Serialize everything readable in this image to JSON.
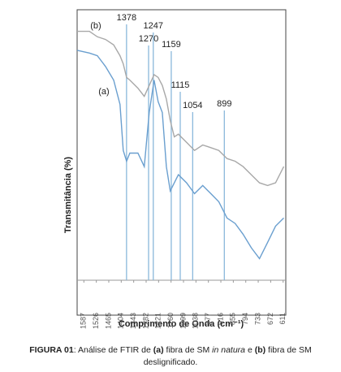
{
  "chart_data": {
    "type": "line",
    "xlabel": "Comprimento de Onda (cm⁻¹)",
    "ylabel": "Transmitância (%)",
    "xlim": [
      1620,
      598
    ],
    "ylim": [
      0,
      100
    ],
    "xticks": [
      1587,
      1526,
      1465,
      1404,
      1343,
      1282,
      1221,
      1160,
      1099,
      1038,
      977,
      916,
      855,
      794,
      733,
      672,
      611
    ],
    "x": [
      1620,
      1560,
      1521,
      1481,
      1441,
      1410,
      1394,
      1378,
      1362,
      1322,
      1291,
      1267,
      1243,
      1223,
      1203,
      1183,
      1164,
      1144,
      1124,
      1084,
      1045,
      1005,
      965,
      926,
      886,
      846,
      807,
      767,
      727,
      687,
      648,
      608
    ],
    "series": [
      {
        "name": "(a)",
        "color": "#6a9fcf",
        "values": [
          85,
          84,
          83,
          79,
          74,
          65,
          48,
          44,
          47,
          47,
          42,
          62,
          74,
          66,
          62,
          42,
          33,
          36,
          39,
          36,
          32,
          35,
          32,
          29,
          23,
          21,
          17,
          12,
          8,
          14,
          20,
          23
        ]
      },
      {
        "name": "(b)",
        "color": "#a8a8a8",
        "values": [
          92,
          92,
          90,
          89,
          87,
          83,
          80,
          75,
          74,
          71,
          68,
          72,
          76,
          75,
          72,
          67,
          59,
          53,
          54,
          51,
          48,
          50,
          49,
          48,
          45,
          44,
          42,
          39,
          36,
          35,
          36,
          42
        ]
      }
    ],
    "peaks": [
      1378,
      1270,
      1247,
      1159,
      1115,
      1054,
      899
    ],
    "peak_color": "#8ab8db",
    "caption": [
      "FIGURA 01",
      ": Análise de FTIR de ",
      "(a)",
      " fibra de SM ",
      "in natura",
      " e ",
      "(b)",
      " fibra de SM deslignificado."
    ]
  }
}
